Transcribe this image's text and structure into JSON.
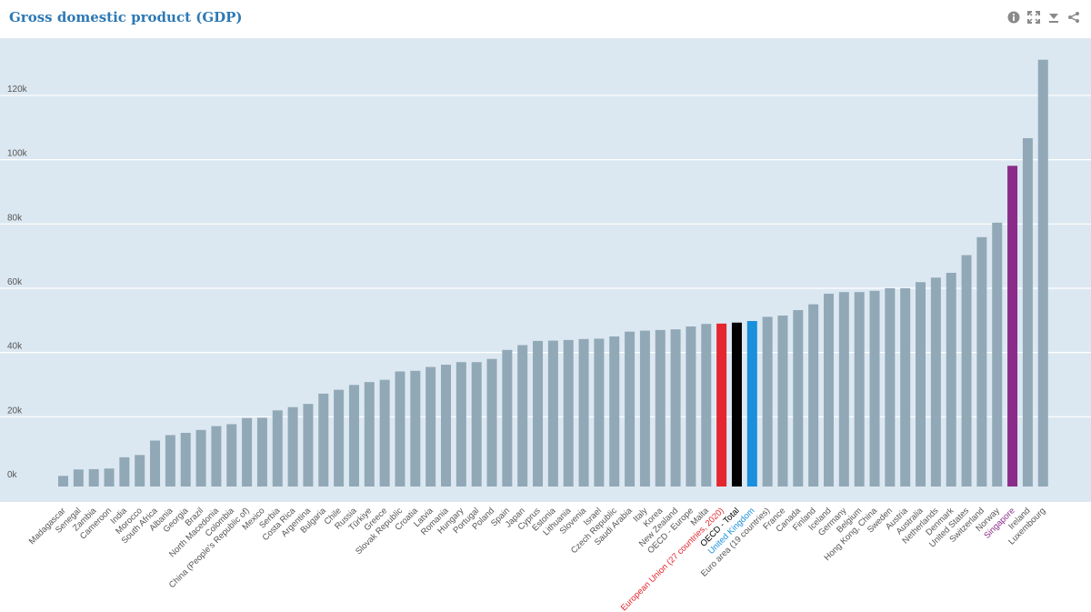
{
  "header": {
    "title": "Gross domestic product (GDP)"
  },
  "toolbar": [
    {
      "icon": "info-icon"
    },
    {
      "icon": "fullscreen-icon"
    },
    {
      "icon": "download-icon"
    },
    {
      "icon": "share-icon"
    }
  ],
  "colors": {
    "plot_bg": "#dce8f1",
    "bar_default": "#91a8b7",
    "gridline": "#ffffff",
    "title": "#2e79b5",
    "highlight_eu": "#e3262f",
    "highlight_oecd": "#000000",
    "highlight_uk": "#1a8fdb",
    "highlight_sg": "#8b2c8a"
  },
  "chart_data": {
    "type": "bar",
    "title": "Gross domestic product (GDP)",
    "xlabel": "",
    "ylabel": "",
    "ylim": [
      -1700,
      133000
    ],
    "yticks": [
      {
        "value": 0,
        "label": "0k"
      },
      {
        "value": 20000,
        "label": "20k"
      },
      {
        "value": 40000,
        "label": "40k"
      },
      {
        "value": 60000,
        "label": "60k"
      },
      {
        "value": 80000,
        "label": "80k"
      },
      {
        "value": 100000,
        "label": "100k"
      },
      {
        "value": 120000,
        "label": "120k"
      }
    ],
    "grid": true,
    "categories": [
      "Madagascar",
      "Senegal",
      "Zambia",
      "Cameroon",
      "India",
      "Morocco",
      "South Africa",
      "Albania",
      "Georgia",
      "Brazil",
      "North Macedonia",
      "Colombia",
      "China (People’s Republic of)",
      "Mexico",
      "Serbia",
      "Costa Rica",
      "Argentina",
      "Bulgaria",
      "Chile",
      "Russia",
      "Türkiye",
      "Greece",
      "Slovak Republic",
      "Croatia",
      "Latvia",
      "Romania",
      "Hungary",
      "Portugal",
      "Poland",
      "Spain",
      "Japan",
      "Cyprus",
      "Estonia",
      "Lithuania",
      "Slovenia",
      "Israel",
      "Czech Republic",
      "Saudi Arabia",
      "Italy",
      "Korea",
      "New Zealand",
      "OECD - Europe",
      "Malta",
      "European Union (27 countries, 2020)",
      "OECD - Total",
      "United Kingdom",
      "Euro area (19 countries)",
      "France",
      "Canada",
      "Finland",
      "Iceland",
      "Germany",
      "Belgium",
      "Hong Kong, China",
      "Sweden",
      "Austria",
      "Australia",
      "Netherlands",
      "Denmark",
      "United States",
      "Switzerland",
      "Norway",
      "Singapore",
      "Ireland",
      "Luxembourg"
    ],
    "values": [
      1600,
      3600,
      3700,
      3900,
      7400,
      8100,
      12600,
      14300,
      15000,
      15900,
      17100,
      17700,
      19600,
      19700,
      22000,
      23000,
      24000,
      27200,
      28400,
      29900,
      30800,
      31500,
      34100,
      34300,
      35500,
      36200,
      37000,
      37000,
      38000,
      40800,
      42300,
      43600,
      43700,
      43900,
      44200,
      44300,
      45000,
      46500,
      46800,
      47000,
      47200,
      48100,
      48900,
      49000,
      49300,
      49800,
      51100,
      51500,
      53200,
      55000,
      58300,
      58800,
      58800,
      59200,
      60000,
      60000,
      61900,
      63300,
      64800,
      70300,
      75900,
      80400,
      98100,
      106700,
      131100
    ],
    "highlights": [
      {
        "category": "European Union (27 countries, 2020)",
        "color": "#e3262f"
      },
      {
        "category": "OECD - Total",
        "color": "#000000"
      },
      {
        "category": "United Kingdom",
        "color": "#1a8fdb"
      },
      {
        "category": "Singapore",
        "color": "#8b2c8a"
      }
    ]
  }
}
